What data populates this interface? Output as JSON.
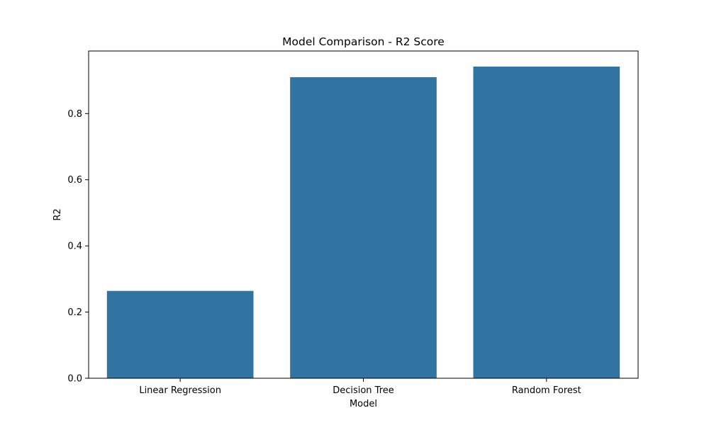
{
  "chart_data": {
    "type": "bar",
    "title": "Model Comparison - R2 Score",
    "xlabel": "Model",
    "ylabel": "R2",
    "categories": [
      "Linear Regression",
      "Decision Tree",
      "Random Forest"
    ],
    "values": [
      0.264,
      0.91,
      0.942
    ],
    "ylim": [
      0,
      0.9891
    ],
    "yticks": [
      0.0,
      0.2,
      0.4,
      0.6,
      0.8
    ],
    "ytick_labels": [
      "0.0",
      "0.2",
      "0.4",
      "0.6",
      "0.8"
    ],
    "grid": false,
    "legend": "none",
    "bar_color": "#3274a1"
  }
}
